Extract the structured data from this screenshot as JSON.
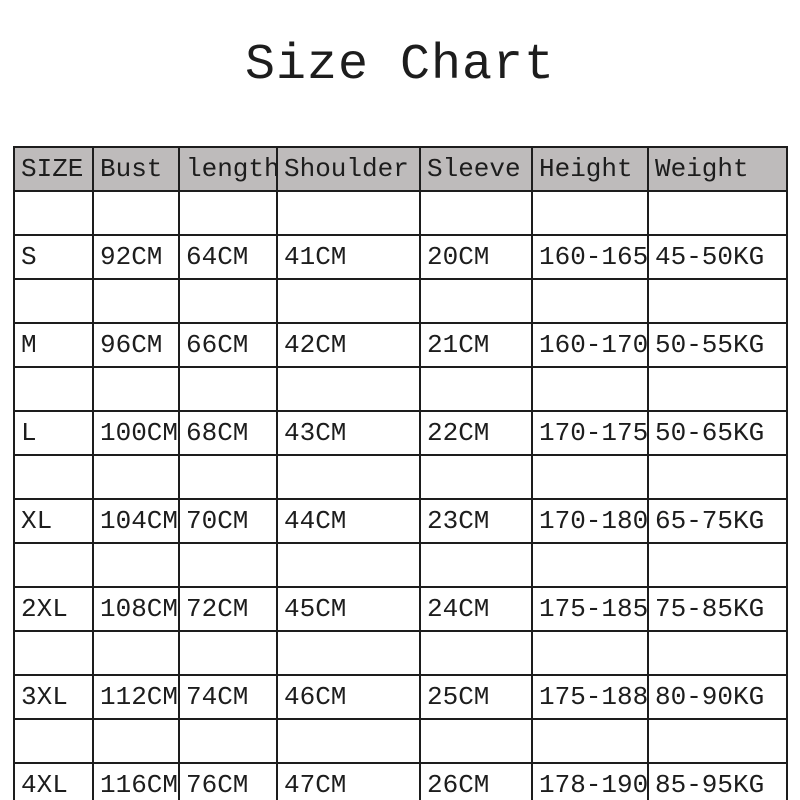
{
  "title": "Size Chart",
  "colors": {
    "header_bg": "#bebbbb",
    "border": "#1d1d1d",
    "text": "#1d1d1d",
    "background": "#ffffff"
  },
  "chart_data": {
    "type": "table",
    "title": "Size Chart",
    "columns": [
      "SIZE",
      "Bust",
      "length",
      "Shoulder",
      "Sleeve",
      "Height",
      "Weight"
    ],
    "rows": [
      [
        "S",
        "92CM",
        "64CM",
        "41CM",
        "20CM",
        "160-165",
        "45-50KG"
      ],
      [
        "M",
        "96CM",
        "66CM",
        "42CM",
        "21CM",
        "160-170",
        "50-55KG"
      ],
      [
        "L",
        "100CM",
        "68CM",
        "43CM",
        "22CM",
        "170-175",
        "50-65KG"
      ],
      [
        "XL",
        "104CM",
        "70CM",
        "44CM",
        "23CM",
        "170-180",
        "65-75KG"
      ],
      [
        "2XL",
        "108CM",
        "72CM",
        "45CM",
        "24CM",
        "175-185",
        "75-85KG"
      ],
      [
        "3XL",
        "112CM",
        "74CM",
        "46CM",
        "25CM",
        "175-188",
        "80-90KG"
      ],
      [
        "4XL",
        "116CM",
        "76CM",
        "47CM",
        "26CM",
        "178-190",
        "85-95KG"
      ]
    ]
  }
}
